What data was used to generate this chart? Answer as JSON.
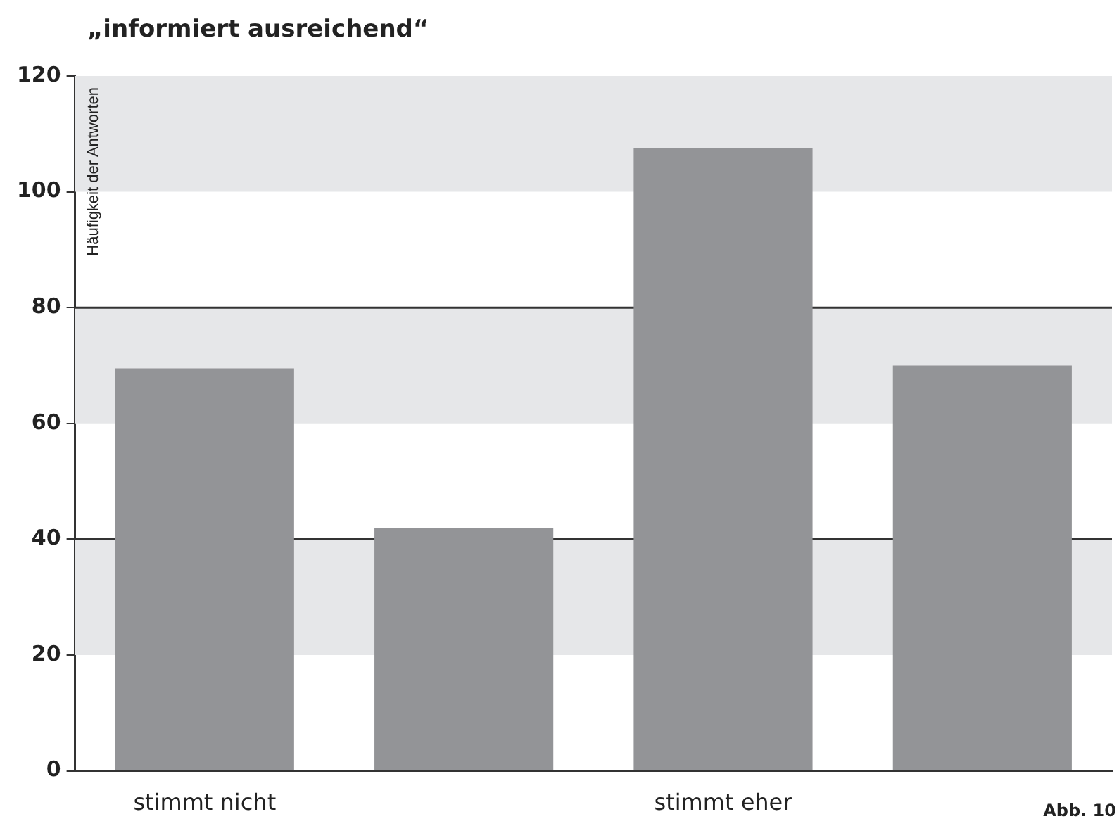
{
  "chart_data": {
    "type": "bar",
    "title": "„informiert ausreichend“",
    "ylabel": "Häufigkeit der Antworten",
    "categories": [
      "stimmt nicht",
      null,
      "stimmt eher",
      null
    ],
    "values": [
      69.5,
      42,
      107.5,
      70
    ],
    "color": "#939497",
    "ylim": [
      0,
      120
    ],
    "yticks": [
      0,
      20,
      40,
      60,
      80,
      100,
      120
    ],
    "bands": [
      {
        "axis": "y",
        "from": 20,
        "to": 40,
        "color": "#e6e7e9"
      },
      {
        "axis": "y",
        "from": 60,
        "to": 80,
        "color": "#e6e7e9"
      },
      {
        "axis": "y",
        "from": 100,
        "to": 120,
        "color": "#e6e7e9"
      }
    ],
    "ref_lines": [
      {
        "axis": "y",
        "value": 40,
        "color": "#333333"
      },
      {
        "axis": "y",
        "value": 80,
        "color": "#333333"
      }
    ],
    "annotations": [
      "Abb. 10"
    ]
  }
}
